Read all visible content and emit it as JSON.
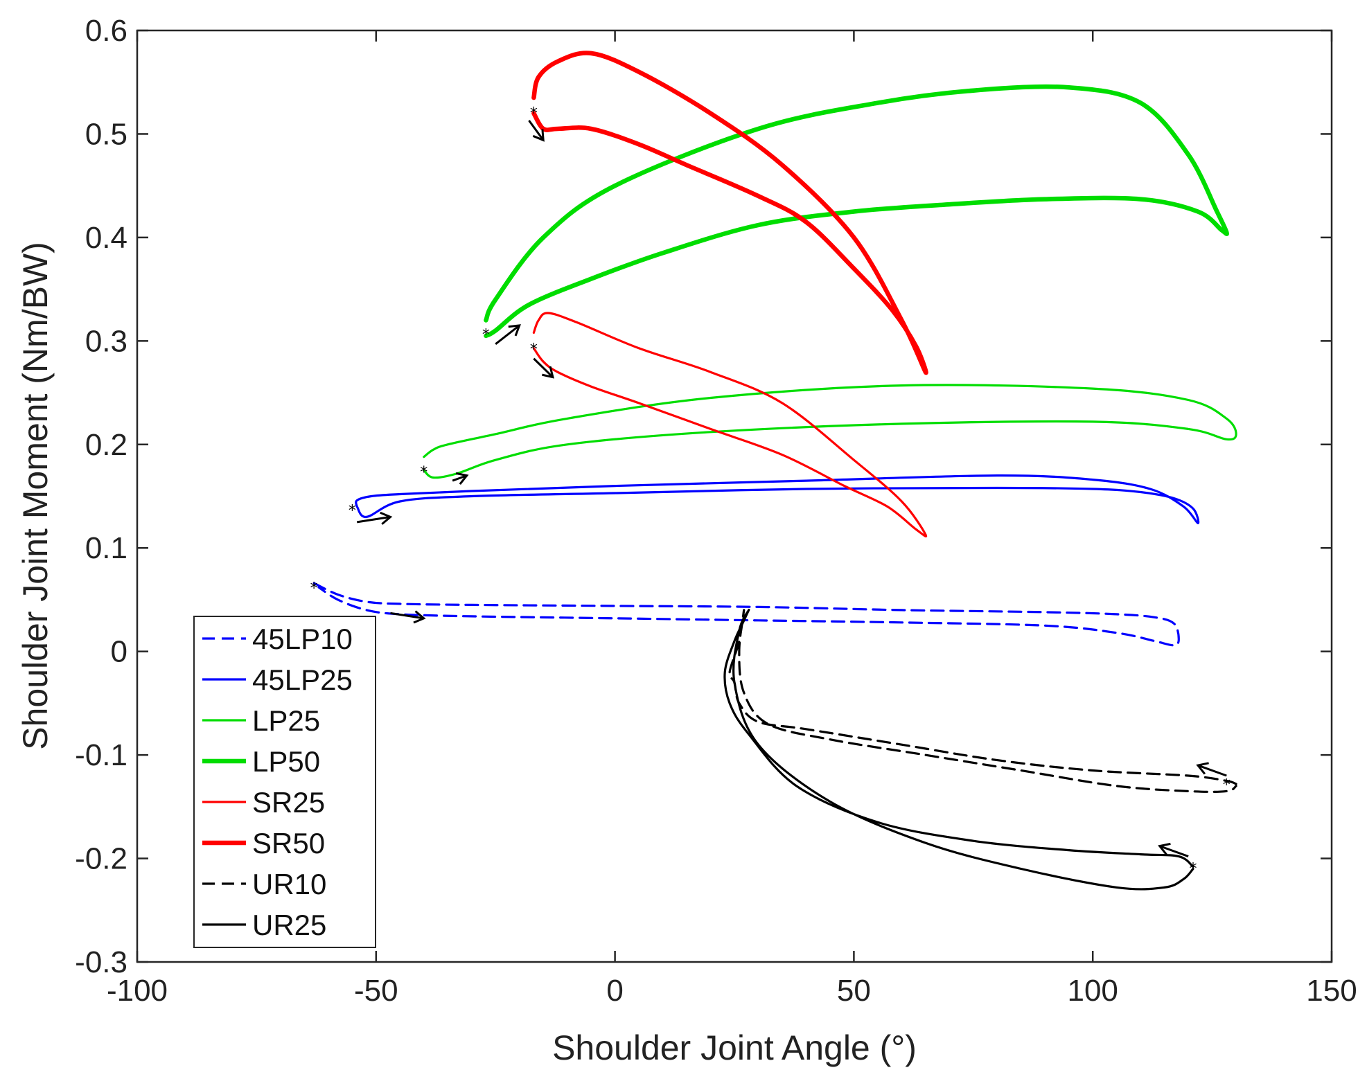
{
  "chart_data": {
    "type": "line",
    "title": "",
    "xlabel": "Shoulder Joint Angle (°)",
    "ylabel": "Shoulder Joint Moment (Nm/BW)",
    "xlim": [
      -100,
      150
    ],
    "ylim": [
      -0.3,
      0.6
    ],
    "xticks": [
      -100,
      -50,
      0,
      50,
      100,
      150
    ],
    "yticks": [
      -0.3,
      -0.2,
      -0.1,
      0,
      0.1,
      0.2,
      0.3,
      0.4,
      0.5,
      0.6
    ],
    "xtick_labels": [
      "-100",
      "-50",
      "0",
      "50",
      "100",
      "150"
    ],
    "ytick_labels": [
      "-0.3",
      "-0.2",
      "-0.1",
      "0",
      "0.1",
      "0.2",
      "0.3",
      "0.4",
      "0.5",
      "0.6"
    ],
    "grid": false,
    "legend_position": "bottom-left",
    "series": [
      {
        "name": "45LP10",
        "color": "#0000ff",
        "dash": "dashed",
        "weight": "thin",
        "x": [
          -63,
          -58,
          -52,
          -45,
          -30,
          0,
          30,
          60,
          90,
          105,
          113,
          117,
          118,
          117,
          113,
          105,
          90,
          60,
          30,
          0,
          -30,
          -45,
          -52,
          -58,
          -62
        ],
        "y": [
          0.066,
          0.055,
          0.048,
          0.046,
          0.045,
          0.044,
          0.043,
          0.04,
          0.038,
          0.036,
          0.033,
          0.027,
          0.012,
          0.006,
          0.01,
          0.018,
          0.025,
          0.028,
          0.03,
          0.032,
          0.034,
          0.036,
          0.04,
          0.05,
          0.062
        ],
        "start": [
          -63,
          0.063
        ],
        "arrow_from": [
          -47,
          0.037
        ],
        "arrow_to": [
          -40,
          0.032
        ]
      },
      {
        "name": "45LP25",
        "color": "#0000ff",
        "dash": "solid",
        "weight": "thin",
        "x": [
          -54,
          -52,
          -45,
          -30,
          0,
          40,
          80,
          100,
          110,
          117,
          121,
          122,
          119,
          112,
          100,
          80,
          40,
          0,
          -30,
          -45,
          -51,
          -54,
          -54
        ],
        "y": [
          0.14,
          0.13,
          0.145,
          0.15,
          0.153,
          0.157,
          0.158,
          0.157,
          0.154,
          0.148,
          0.138,
          0.124,
          0.14,
          0.157,
          0.166,
          0.17,
          0.165,
          0.16,
          0.155,
          0.152,
          0.15,
          0.146,
          0.14
        ],
        "start": [
          -55,
          0.138
        ],
        "arrow_from": [
          -54,
          0.125
        ],
        "arrow_to": [
          -47,
          0.13
        ]
      },
      {
        "name": "LP25",
        "color": "#00dd00",
        "dash": "solid",
        "weight": "thin",
        "x": [
          -40,
          -38,
          -33,
          -25,
          -10,
          20,
          60,
          100,
          120,
          128,
          130,
          128,
          120,
          100,
          60,
          20,
          -10,
          -25,
          -35,
          -38,
          -40
        ],
        "y": [
          0.175,
          0.168,
          0.172,
          0.185,
          0.2,
          0.212,
          0.22,
          0.222,
          0.215,
          0.205,
          0.21,
          0.225,
          0.243,
          0.254,
          0.257,
          0.245,
          0.225,
          0.21,
          0.2,
          0.195,
          0.188
        ],
        "start": [
          -40,
          0.175
        ],
        "arrow_from": [
          -34,
          0.165
        ],
        "arrow_to": [
          -31,
          0.17
        ]
      },
      {
        "name": "LP50",
        "color": "#00dd00",
        "dash": "solid",
        "weight": "thick",
        "x": [
          -27,
          -25,
          -18,
          -5,
          10,
          30,
          50,
          70,
          90,
          110,
          122,
          127,
          128,
          126,
          120,
          110,
          95,
          75,
          55,
          30,
          0,
          -15,
          -25,
          -27
        ],
        "y": [
          0.305,
          0.31,
          0.335,
          0.36,
          0.385,
          0.412,
          0.425,
          0.432,
          0.437,
          0.437,
          0.425,
          0.407,
          0.405,
          0.425,
          0.48,
          0.53,
          0.545,
          0.542,
          0.53,
          0.505,
          0.45,
          0.4,
          0.34,
          0.32
        ],
        "start": [
          -27,
          0.308
        ],
        "arrow_from": [
          -25,
          0.297
        ],
        "arrow_to": [
          -20,
          0.315
        ]
      },
      {
        "name": "SR25",
        "color": "#ff0000",
        "dash": "solid",
        "weight": "thin",
        "x": [
          -17,
          -15,
          -12,
          -5,
          5,
          20,
          35,
          48,
          57,
          63,
          65,
          60,
          50,
          35,
          20,
          5,
          -8,
          -14,
          -16,
          -17
        ],
        "y": [
          0.293,
          0.28,
          0.27,
          0.256,
          0.24,
          0.215,
          0.19,
          0.16,
          0.14,
          0.118,
          0.113,
          0.145,
          0.185,
          0.24,
          0.27,
          0.293,
          0.318,
          0.327,
          0.32,
          0.308
        ],
        "start": [
          -17,
          0.294
        ],
        "arrow_from": [
          -17,
          0.283
        ],
        "arrow_to": [
          -13,
          0.265
        ]
      },
      {
        "name": "SR50",
        "color": "#ff0000",
        "dash": "solid",
        "weight": "thick",
        "x": [
          -17,
          -15,
          -12,
          -5,
          5,
          15,
          30,
          40,
          50,
          58,
          63,
          65,
          60,
          50,
          35,
          20,
          5,
          -5,
          -12,
          -16,
          -17
        ],
        "y": [
          0.52,
          0.505,
          0.505,
          0.505,
          0.49,
          0.47,
          0.44,
          0.415,
          0.37,
          0.33,
          0.295,
          0.27,
          0.32,
          0.4,
          0.47,
          0.52,
          0.56,
          0.578,
          0.57,
          0.555,
          0.535
        ],
        "start": [
          -17,
          0.522
        ],
        "arrow_from": [
          -18,
          0.513
        ],
        "arrow_to": [
          -15,
          0.494
        ]
      },
      {
        "name": "UR10",
        "color": "#000000",
        "dash": "dashed",
        "weight": "thin",
        "x": [
          130,
          128,
          120,
          100,
          80,
          60,
          40,
          30,
          26,
          25,
          24,
          26,
          27,
          26,
          27,
          32,
          45,
          65,
          85,
          105,
          120,
          128,
          130
        ],
        "y": [
          -0.128,
          -0.125,
          -0.12,
          -0.115,
          -0.105,
          -0.09,
          -0.075,
          -0.068,
          -0.05,
          -0.03,
          -0.02,
          0.01,
          0.04,
          0.0,
          -0.04,
          -0.07,
          -0.085,
          -0.1,
          -0.115,
          -0.13,
          -0.135,
          -0.135,
          -0.13
        ],
        "start": [
          128,
          -0.127
        ],
        "arrow_from": [
          128,
          -0.12
        ],
        "arrow_to": [
          122,
          -0.11
        ]
      },
      {
        "name": "UR25",
        "color": "#000000",
        "dash": "solid",
        "weight": "thin",
        "x": [
          121,
          118,
          110,
          95,
          75,
          55,
          38,
          28,
          24,
          23,
          25,
          27,
          28,
          26,
          25,
          30,
          45,
          65,
          85,
          105,
          115,
          119,
          121
        ],
        "y": [
          -0.208,
          -0.198,
          -0.196,
          -0.192,
          -0.183,
          -0.165,
          -0.13,
          -0.08,
          -0.05,
          -0.02,
          0.01,
          0.03,
          0.04,
          0.02,
          -0.03,
          -0.09,
          -0.145,
          -0.185,
          -0.21,
          -0.228,
          -0.228,
          -0.22,
          -0.21
        ],
        "start": [
          121,
          -0.208
        ],
        "arrow_from": [
          120,
          -0.198
        ],
        "arrow_to": [
          114,
          -0.188
        ]
      }
    ]
  }
}
